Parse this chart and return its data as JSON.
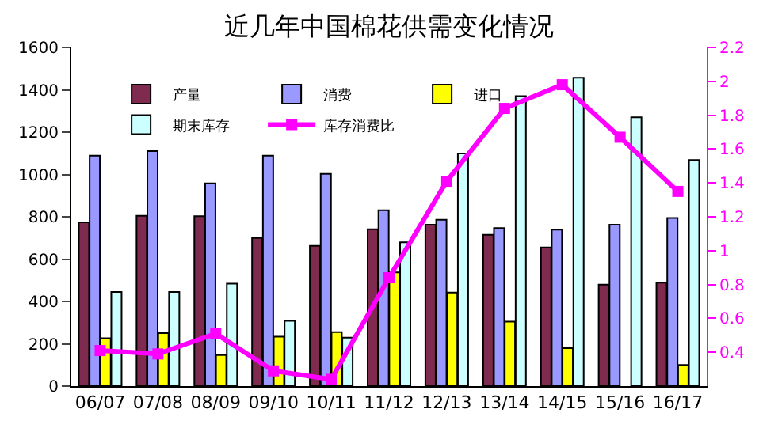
{
  "chart_data": {
    "type": "bar",
    "title": "近几年中国棉花供需变化情况",
    "categories": [
      "06/07",
      "07/08",
      "08/09",
      "09/10",
      "10/11",
      "11/12",
      "12/13",
      "13/14",
      "14/15",
      "15/16",
      "16/17"
    ],
    "series": [
      {
        "name": "产量",
        "color": "#7f2a4f",
        "values": [
          774,
          805,
          803,
          700,
          663,
          741,
          763,
          715,
          655,
          479,
          489
        ]
      },
      {
        "name": "消费",
        "color": "#9999ff",
        "values": [
          1089,
          1110,
          958,
          1089,
          1003,
          831,
          786,
          747,
          739,
          763,
          794
        ]
      },
      {
        "name": "进口",
        "color": "#ffff00",
        "values": [
          226,
          250,
          147,
          234,
          255,
          537,
          442,
          305,
          179,
          null,
          100
        ]
      },
      {
        "name": "期末库存",
        "color": "#ccffff",
        "values": [
          445,
          445,
          484,
          308,
          229,
          679,
          1099,
          1370,
          1457,
          1270,
          1068
        ]
      },
      {
        "name": "库存消费比",
        "type": "line",
        "axis": "y2",
        "color": "#ff00ff",
        "marker": "square",
        "values": [
          0.41,
          0.39,
          0.51,
          0.29,
          0.24,
          0.84,
          1.41,
          1.84,
          1.98,
          1.67,
          1.35
        ]
      }
    ],
    "ylim": [
      0,
      1600
    ],
    "yticks": [
      0,
      200,
      400,
      600,
      800,
      1000,
      1200,
      1400,
      1600
    ],
    "y2lim": [
      0.2,
      2.2
    ],
    "y2ticks": [
      0.4,
      0.6,
      0.8,
      1,
      1.2,
      1.4,
      1.6,
      1.8,
      2,
      2.2
    ],
    "legend": "top left"
  }
}
